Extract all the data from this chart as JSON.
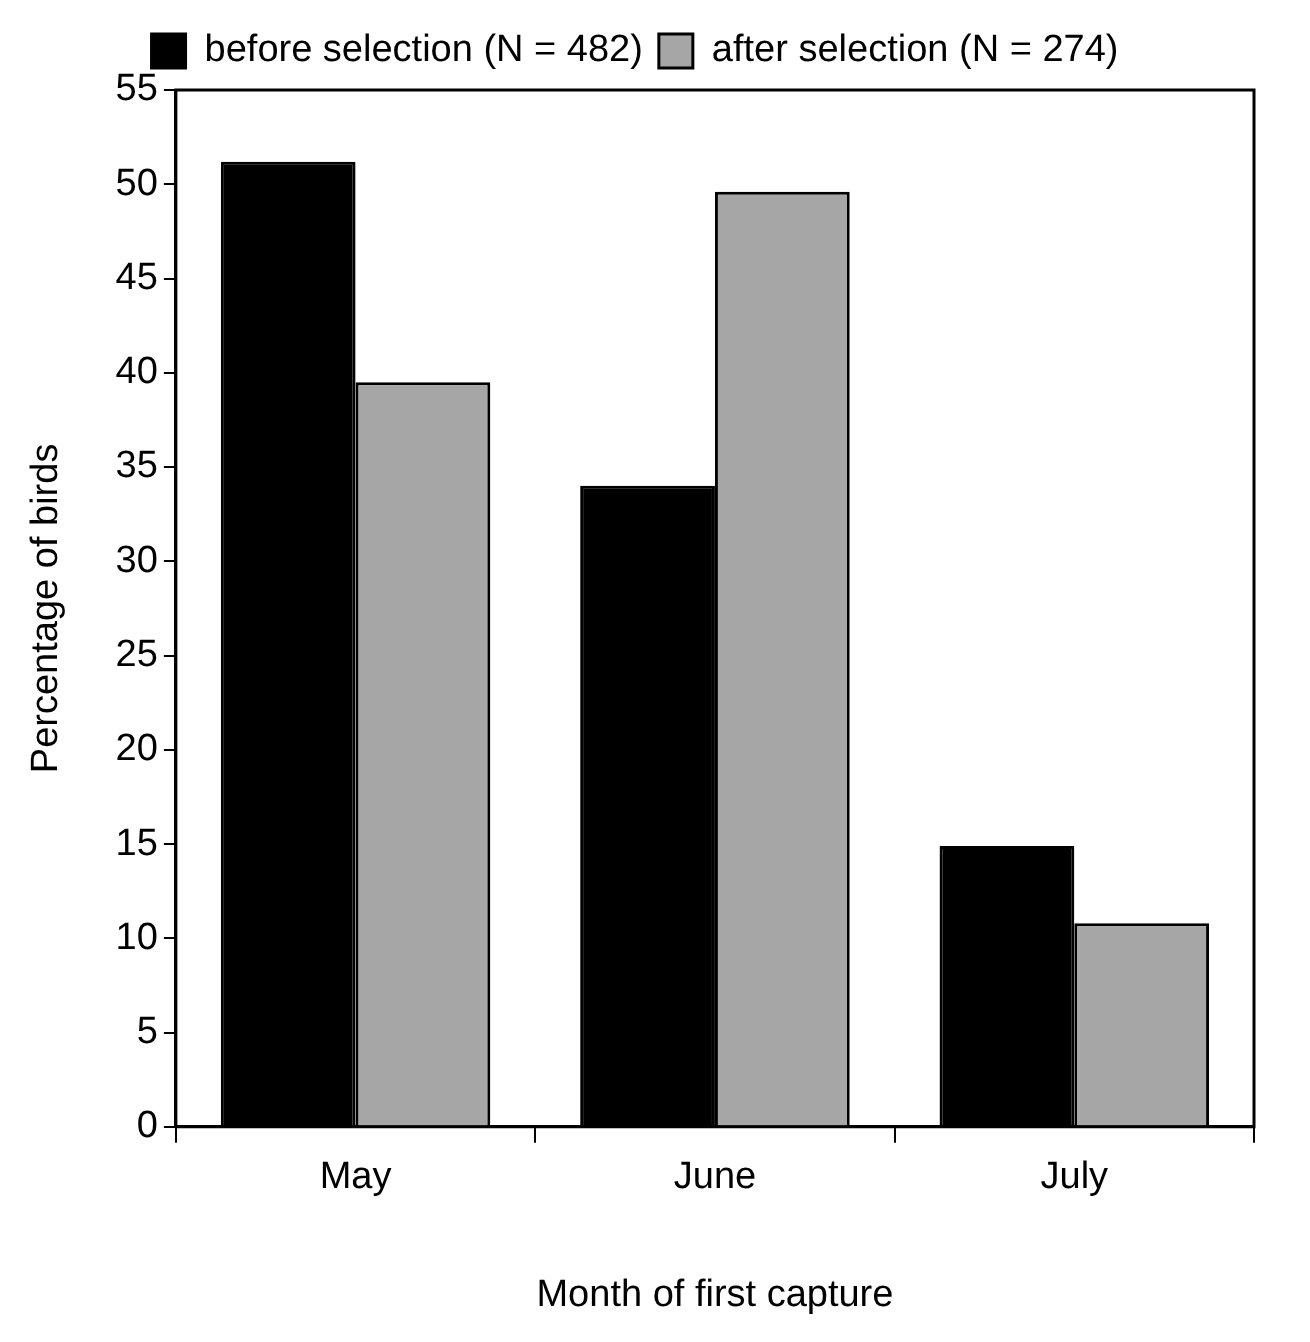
{
  "chart_data": {
    "type": "bar",
    "xlabel": "Month of first capture",
    "ylabel": "Percentage of birds",
    "categories": [
      "May",
      "June",
      "July"
    ],
    "series": [
      {
        "name": "before selection (N = 482)",
        "color": "#000000",
        "values": [
          51.2,
          34.0,
          14.9
        ]
      },
      {
        "name": "after selection (N = 274)",
        "color": "#a6a6a6",
        "values": [
          39.5,
          49.6,
          10.8
        ]
      }
    ],
    "ylim": [
      0,
      55
    ],
    "yticks": [
      0,
      5,
      10,
      15,
      20,
      25,
      30,
      35,
      40,
      45,
      50,
      55
    ],
    "grid": false,
    "legend": "top"
  }
}
